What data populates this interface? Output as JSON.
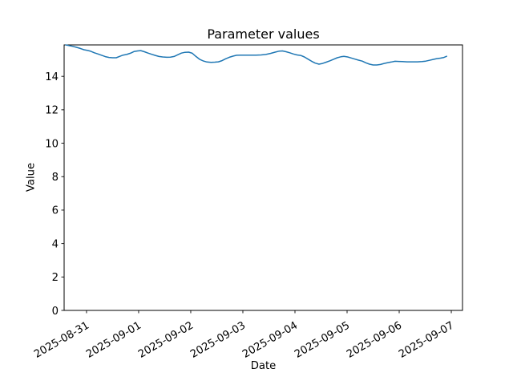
{
  "chart_data": {
    "type": "line",
    "title": "Parameter values",
    "xlabel": "Date",
    "ylabel": "Value",
    "legend": "none",
    "grid": false,
    "background_color": "#ffffff",
    "axis_color": "#000000",
    "line_color": "#1f77b4",
    "y_ticks": [
      0,
      2,
      4,
      6,
      8,
      10,
      12,
      14
    ],
    "ylim": [
      0,
      15.88
    ],
    "x_tick_days": [
      0,
      1,
      2,
      3,
      4,
      5,
      6,
      7
    ],
    "x_tick_labels": [
      "2025-08-31",
      "2025-09-01",
      "2025-09-02",
      "2025-09-03",
      "2025-09-04",
      "2025-09-05",
      "2025-09-06",
      "2025-09-07"
    ],
    "x_tick_rotation_deg": 30,
    "xlim_days": [
      -0.43,
      7.215
    ],
    "series": [
      {
        "name": "parameter-values",
        "x_unit": "days_since_2025-08-31T00:00",
        "points": [
          [
            -0.4,
            15.88
          ],
          [
            -0.34,
            15.84
          ],
          [
            -0.27,
            15.8
          ],
          [
            -0.2,
            15.74
          ],
          [
            -0.12,
            15.67
          ],
          [
            -0.05,
            15.59
          ],
          [
            0.02,
            15.55
          ],
          [
            0.08,
            15.5
          ],
          [
            0.15,
            15.41
          ],
          [
            0.22,
            15.34
          ],
          [
            0.29,
            15.26
          ],
          [
            0.36,
            15.18
          ],
          [
            0.43,
            15.13
          ],
          [
            0.5,
            15.11
          ],
          [
            0.57,
            15.11
          ],
          [
            0.63,
            15.19
          ],
          [
            0.7,
            15.27
          ],
          [
            0.77,
            15.31
          ],
          [
            0.84,
            15.38
          ],
          [
            0.91,
            15.48
          ],
          [
            0.98,
            15.52
          ],
          [
            1.04,
            15.54
          ],
          [
            1.11,
            15.47
          ],
          [
            1.18,
            15.39
          ],
          [
            1.25,
            15.32
          ],
          [
            1.32,
            15.25
          ],
          [
            1.39,
            15.19
          ],
          [
            1.46,
            15.16
          ],
          [
            1.54,
            15.14
          ],
          [
            1.61,
            15.15
          ],
          [
            1.68,
            15.19
          ],
          [
            1.75,
            15.29
          ],
          [
            1.82,
            15.39
          ],
          [
            1.89,
            15.44
          ],
          [
            1.96,
            15.45
          ],
          [
            2.03,
            15.38
          ],
          [
            2.1,
            15.19
          ],
          [
            2.17,
            15.02
          ],
          [
            2.24,
            14.92
          ],
          [
            2.31,
            14.86
          ],
          [
            2.39,
            14.84
          ],
          [
            2.46,
            14.85
          ],
          [
            2.53,
            14.87
          ],
          [
            2.6,
            14.94
          ],
          [
            2.67,
            15.05
          ],
          [
            2.74,
            15.14
          ],
          [
            2.81,
            15.21
          ],
          [
            2.88,
            15.26
          ],
          [
            2.96,
            15.27
          ],
          [
            3.05,
            15.27
          ],
          [
            3.15,
            15.27
          ],
          [
            3.25,
            15.27
          ],
          [
            3.35,
            15.28
          ],
          [
            3.44,
            15.31
          ],
          [
            3.53,
            15.37
          ],
          [
            3.62,
            15.45
          ],
          [
            3.7,
            15.51
          ],
          [
            3.76,
            15.52
          ],
          [
            3.83,
            15.47
          ],
          [
            3.9,
            15.41
          ],
          [
            3.97,
            15.34
          ],
          [
            4.04,
            15.28
          ],
          [
            4.11,
            15.25
          ],
          [
            4.18,
            15.16
          ],
          [
            4.25,
            15.03
          ],
          [
            4.32,
            14.9
          ],
          [
            4.39,
            14.79
          ],
          [
            4.46,
            14.73
          ],
          [
            4.53,
            14.77
          ],
          [
            4.6,
            14.85
          ],
          [
            4.67,
            14.93
          ],
          [
            4.74,
            15.02
          ],
          [
            4.81,
            15.11
          ],
          [
            4.88,
            15.17
          ],
          [
            4.94,
            15.2
          ],
          [
            5.01,
            15.16
          ],
          [
            5.08,
            15.1
          ],
          [
            5.15,
            15.03
          ],
          [
            5.22,
            14.97
          ],
          [
            5.29,
            14.91
          ],
          [
            5.36,
            14.81
          ],
          [
            5.43,
            14.73
          ],
          [
            5.5,
            14.68
          ],
          [
            5.57,
            14.68
          ],
          [
            5.64,
            14.71
          ],
          [
            5.71,
            14.77
          ],
          [
            5.78,
            14.82
          ],
          [
            5.85,
            14.86
          ],
          [
            5.92,
            14.9
          ],
          [
            5.99,
            14.89
          ],
          [
            6.06,
            14.88
          ],
          [
            6.15,
            14.87
          ],
          [
            6.25,
            14.87
          ],
          [
            6.35,
            14.87
          ],
          [
            6.44,
            14.88
          ],
          [
            6.51,
            14.91
          ],
          [
            6.58,
            14.96
          ],
          [
            6.65,
            15.01
          ],
          [
            6.72,
            15.06
          ],
          [
            6.79,
            15.09
          ],
          [
            6.85,
            15.12
          ],
          [
            6.91,
            15.2
          ]
        ]
      }
    ]
  }
}
